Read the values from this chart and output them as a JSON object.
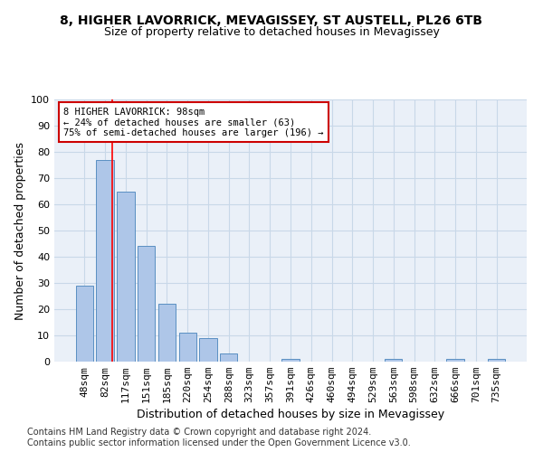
{
  "title1": "8, HIGHER LAVORRICK, MEVAGISSEY, ST AUSTELL, PL26 6TB",
  "title2": "Size of property relative to detached houses in Mevagissey",
  "xlabel": "Distribution of detached houses by size in Mevagissey",
  "ylabel": "Number of detached properties",
  "categories": [
    "48sqm",
    "82sqm",
    "117sqm",
    "151sqm",
    "185sqm",
    "220sqm",
    "254sqm",
    "288sqm",
    "323sqm",
    "357sqm",
    "391sqm",
    "426sqm",
    "460sqm",
    "494sqm",
    "529sqm",
    "563sqm",
    "598sqm",
    "632sqm",
    "666sqm",
    "701sqm",
    "735sqm"
  ],
  "bar_heights": [
    29,
    77,
    65,
    44,
    22,
    11,
    9,
    3,
    0,
    0,
    1,
    0,
    0,
    0,
    0,
    1,
    0,
    0,
    1,
    0,
    1
  ],
  "bar_color": "#aec6e8",
  "bar_edge_color": "#5a8fc2",
  "grid_color": "#c8d8e8",
  "background_color": "#eaf0f8",
  "red_line_x": 1.35,
  "annotation_text": "8 HIGHER LAVORRICK: 98sqm\n← 24% of detached houses are smaller (63)\n75% of semi-detached houses are larger (196) →",
  "annotation_box_color": "#ffffff",
  "annotation_box_edge_color": "#cc0000",
  "ylim": [
    0,
    100
  ],
  "yticks": [
    0,
    10,
    20,
    30,
    40,
    50,
    60,
    70,
    80,
    90,
    100
  ],
  "footnote": "Contains HM Land Registry data © Crown copyright and database right 2024.\nContains public sector information licensed under the Open Government Licence v3.0.",
  "title1_fontsize": 10,
  "title2_fontsize": 9,
  "xlabel_fontsize": 9,
  "ylabel_fontsize": 9,
  "tick_fontsize": 8,
  "footnote_fontsize": 7
}
